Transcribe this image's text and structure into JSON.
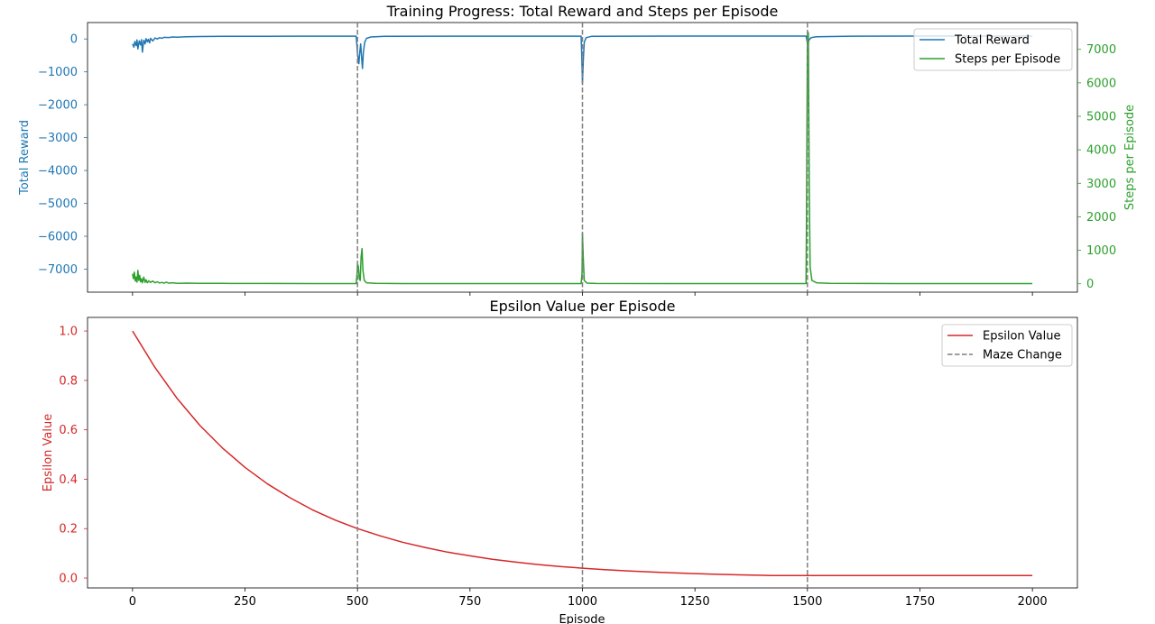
{
  "chart_data": [
    {
      "type": "line",
      "title": "Training Progress: Total Reward and Steps per Episode",
      "xlim": [
        -100,
        2100
      ],
      "y_left": {
        "label": "Total Reward",
        "color": "#1f77b4",
        "lim": [
          -7700,
          500
        ],
        "ticks": [
          0,
          -1000,
          -2000,
          -3000,
          -4000,
          -5000,
          -6000,
          -7000
        ],
        "tick_labels": [
          "0",
          "−1000",
          "−2000",
          "−3000",
          "−4000",
          "−5000",
          "−6000",
          "−7000"
        ]
      },
      "y_right": {
        "label": "Steps per Episode",
        "color": "#2ca02c",
        "lim": [
          -250,
          7800
        ],
        "ticks": [
          0,
          1000,
          2000,
          3000,
          4000,
          5000,
          6000,
          7000
        ],
        "tick_labels": [
          "0",
          "1000",
          "2000",
          "3000",
          "4000",
          "5000",
          "6000",
          "7000"
        ]
      },
      "legend": {
        "position": "top-right",
        "entries": [
          "Total Reward",
          "Steps per Episode"
        ]
      },
      "series": [
        {
          "name": "Total Reward",
          "axis": "left",
          "color": "#1f77b4",
          "points": [
            [
              0,
              -150
            ],
            [
              3,
              -250
            ],
            [
              5,
              -80
            ],
            [
              8,
              -200
            ],
            [
              10,
              -30
            ],
            [
              12,
              -300
            ],
            [
              15,
              -60
            ],
            [
              18,
              -180
            ],
            [
              20,
              -20
            ],
            [
              22,
              -400
            ],
            [
              25,
              -40
            ],
            [
              28,
              -150
            ],
            [
              30,
              10
            ],
            [
              33,
              -90
            ],
            [
              35,
              -10
            ],
            [
              38,
              -120
            ],
            [
              40,
              20
            ],
            [
              45,
              -60
            ],
            [
              50,
              30
            ],
            [
              55,
              0
            ],
            [
              60,
              40
            ],
            [
              65,
              20
            ],
            [
              70,
              50
            ],
            [
              80,
              45
            ],
            [
              90,
              60
            ],
            [
              100,
              55
            ],
            [
              120,
              70
            ],
            [
              150,
              75
            ],
            [
              200,
              80
            ],
            [
              250,
              82
            ],
            [
              300,
              84
            ],
            [
              350,
              85
            ],
            [
              400,
              86
            ],
            [
              450,
              86
            ],
            [
              497,
              86
            ],
            [
              498,
              -80
            ],
            [
              500,
              -450
            ],
            [
              503,
              -750
            ],
            [
              505,
              -400
            ],
            [
              507,
              -150
            ],
            [
              509,
              -550
            ],
            [
              511,
              -900
            ],
            [
              513,
              -400
            ],
            [
              516,
              -100
            ],
            [
              520,
              20
            ],
            [
              530,
              60
            ],
            [
              560,
              80
            ],
            [
              700,
              86
            ],
            [
              900,
              87
            ],
            [
              997,
              87
            ],
            [
              998,
              -300
            ],
            [
              1000,
              -1350
            ],
            [
              1002,
              -600
            ],
            [
              1004,
              -100
            ],
            [
              1008,
              40
            ],
            [
              1020,
              80
            ],
            [
              1100,
              87
            ],
            [
              1300,
              88
            ],
            [
              1497,
              88
            ],
            [
              1499,
              -50
            ],
            [
              1501,
              -200
            ],
            [
              1503,
              -40
            ],
            [
              1508,
              40
            ],
            [
              1520,
              70
            ],
            [
              1600,
              86
            ],
            [
              1800,
              88
            ],
            [
              2000,
              89
            ]
          ]
        },
        {
          "name": "Steps per Episode",
          "axis": "right",
          "color": "#2ca02c",
          "points": [
            [
              0,
              300
            ],
            [
              2,
              150
            ],
            [
              4,
              350
            ],
            [
              6,
              80
            ],
            [
              8,
              200
            ],
            [
              10,
              50
            ],
            [
              12,
              400
            ],
            [
              14,
              100
            ],
            [
              16,
              250
            ],
            [
              18,
              60
            ],
            [
              20,
              150
            ],
            [
              22,
              30
            ],
            [
              25,
              200
            ],
            [
              28,
              40
            ],
            [
              30,
              120
            ],
            [
              33,
              30
            ],
            [
              36,
              90
            ],
            [
              40,
              40
            ],
            [
              45,
              80
            ],
            [
              50,
              30
            ],
            [
              55,
              60
            ],
            [
              60,
              25
            ],
            [
              65,
              40
            ],
            [
              70,
              20
            ],
            [
              75,
              50
            ],
            [
              80,
              20
            ],
            [
              90,
              30
            ],
            [
              100,
              15
            ],
            [
              120,
              20
            ],
            [
              150,
              12
            ],
            [
              200,
              10
            ],
            [
              300,
              8
            ],
            [
              400,
              7
            ],
            [
              497,
              7
            ],
            [
              499,
              300
            ],
            [
              500,
              600
            ],
            [
              502,
              500
            ],
            [
              504,
              150
            ],
            [
              506,
              100
            ],
            [
              508,
              800
            ],
            [
              510,
              1050
            ],
            [
              512,
              400
            ],
            [
              515,
              100
            ],
            [
              520,
              30
            ],
            [
              540,
              10
            ],
            [
              600,
              7
            ],
            [
              997,
              7
            ],
            [
              999,
              300
            ],
            [
              1000,
              1500
            ],
            [
              1002,
              700
            ],
            [
              1004,
              100
            ],
            [
              1010,
              20
            ],
            [
              1030,
              8
            ],
            [
              1200,
              7
            ],
            [
              1497,
              7
            ],
            [
              1498,
              2000
            ],
            [
              1500,
              7400
            ],
            [
              1502,
              7500
            ],
            [
              1504,
              3000
            ],
            [
              1506,
              500
            ],
            [
              1510,
              100
            ],
            [
              1520,
              30
            ],
            [
              1550,
              10
            ],
            [
              1700,
              7
            ],
            [
              2000,
              7
            ]
          ]
        }
      ],
      "vlines": [
        500,
        1000,
        1500
      ]
    },
    {
      "type": "line",
      "title": "Epsilon Value per Episode",
      "xlabel": "Episode",
      "ylabel": "Epsilon Value",
      "ylabel_color": "#d62728",
      "xlim": [
        -100,
        2100
      ],
      "ylim": [
        -0.04,
        1.055
      ],
      "xticks": [
        0,
        250,
        500,
        750,
        1000,
        1250,
        1500,
        1750,
        2000
      ],
      "yticks": [
        0.0,
        0.2,
        0.4,
        0.6,
        0.8,
        1.0
      ],
      "ytick_labels": [
        "0.0",
        "0.2",
        "0.4",
        "0.6",
        "0.8",
        "1.0"
      ],
      "legend": {
        "position": "top-right",
        "entries": [
          "Epsilon Value",
          "Maze Change"
        ]
      },
      "series": [
        {
          "name": "Epsilon Value",
          "color": "#d62728",
          "points": [
            [
              0,
              1.0
            ],
            [
              50,
              0.852
            ],
            [
              100,
              0.725
            ],
            [
              150,
              0.617
            ],
            [
              200,
              0.526
            ],
            [
              250,
              0.448
            ],
            [
              300,
              0.381
            ],
            [
              350,
              0.325
            ],
            [
              400,
              0.276
            ],
            [
              450,
              0.235
            ],
            [
              500,
              0.2
            ],
            [
              550,
              0.171
            ],
            [
              600,
              0.145
            ],
            [
              650,
              0.124
            ],
            [
              700,
              0.105
            ],
            [
              750,
              0.09
            ],
            [
              800,
              0.076
            ],
            [
              850,
              0.065
            ],
            [
              900,
              0.055
            ],
            [
              950,
              0.047
            ],
            [
              1000,
              0.04
            ],
            [
              1050,
              0.034
            ],
            [
              1100,
              0.029
            ],
            [
              1150,
              0.025
            ],
            [
              1200,
              0.021
            ],
            [
              1250,
              0.018
            ],
            [
              1300,
              0.015
            ],
            [
              1350,
              0.013
            ],
            [
              1400,
              0.011
            ],
            [
              1420,
              0.01
            ],
            [
              1500,
              0.01
            ],
            [
              2000,
              0.01
            ]
          ]
        },
        {
          "name": "Maze Change",
          "color": "#7f7f7f",
          "style": "dashed",
          "x": [
            500,
            1000,
            1500
          ]
        }
      ]
    }
  ]
}
